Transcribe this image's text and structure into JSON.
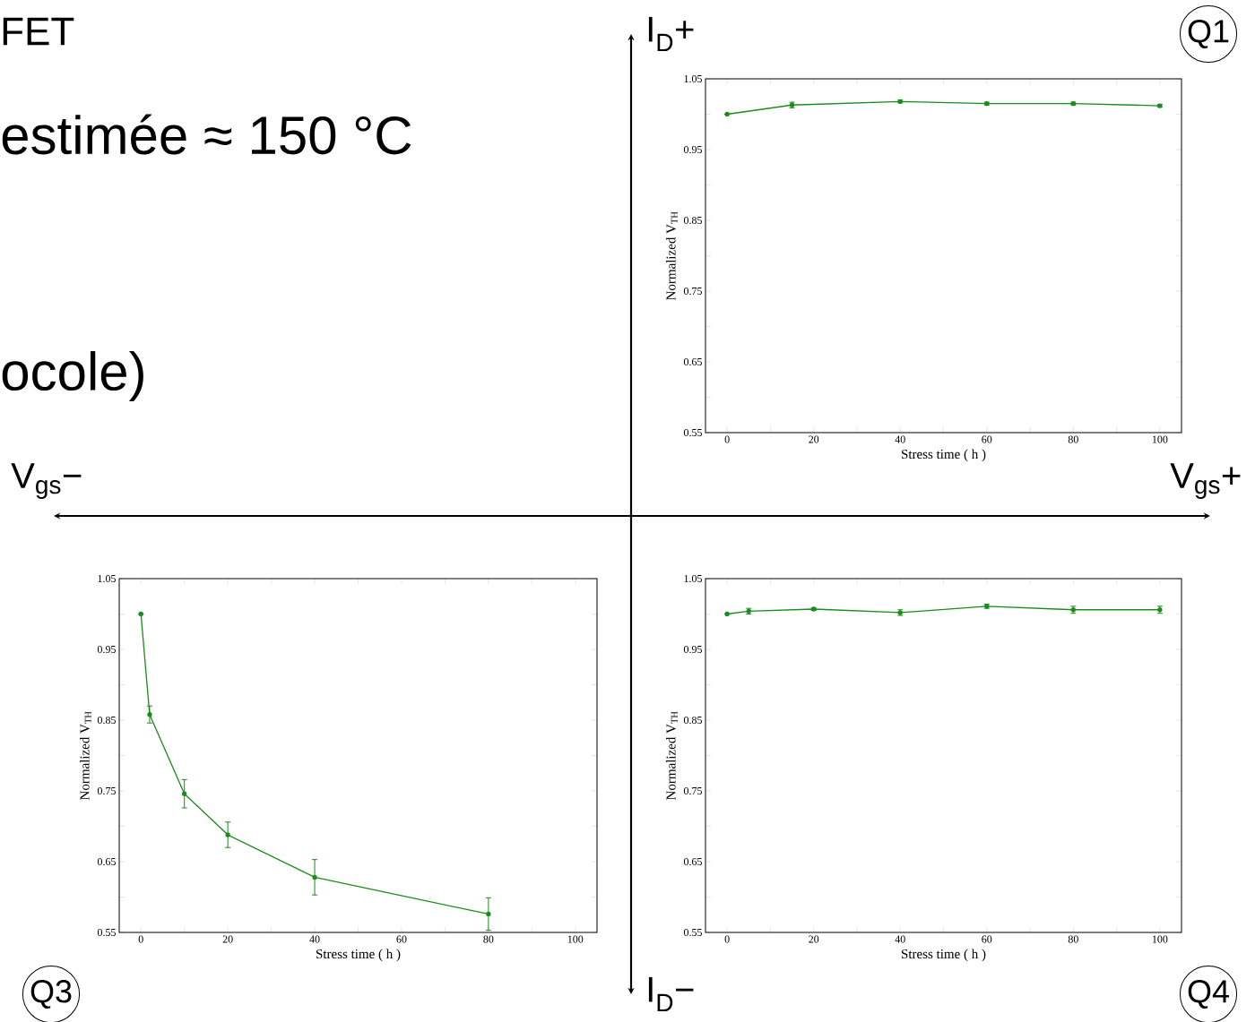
{
  "chart_data": [
    {
      "type": "line",
      "xlabel": "Stress time ( h )",
      "ylabel": "Normalized V$_{TH}$",
      "marker": "circle",
      "line_style": "solid",
      "x": [
        0,
        15,
        40,
        60,
        80,
        100
      ],
      "series": [
        {
          "color": "#1a8c1a",
          "values": [
            1.0,
            1.013,
            1.018,
            1.015,
            1.015,
            1.012
          ],
          "errors": [
            null,
            0.004,
            0.002,
            0.002,
            0.002,
            0.002
          ]
        }
      ],
      "xlim": [
        -5,
        105
      ],
      "ylim": [
        0.55,
        1.05
      ],
      "xticks": [
        0,
        {
          "value": 10,
          "label": null
        },
        20,
        {
          "value": 30,
          "label": null
        },
        40,
        {
          "value": 50,
          "label": null
        },
        60,
        {
          "value": 70,
          "label": null
        },
        80,
        {
          "value": 90,
          "label": null
        },
        100
      ],
      "yticks": [
        0.55,
        {
          "value": 0.6,
          "label": null
        },
        0.65,
        {
          "value": 0.7,
          "label": null
        },
        0.75,
        {
          "value": 0.8,
          "label": null
        },
        0.85,
        {
          "value": 0.9,
          "label": null
        },
        0.95,
        {
          "value": 1.0,
          "label": null
        },
        1.05
      ]
    },
    {
      "type": "line",
      "xlabel": "Stress time ( h )",
      "ylabel": "Normalized V$_{TH}$",
      "marker": "circle",
      "line_style": "solid",
      "x": [
        0,
        2,
        10,
        20,
        40,
        80
      ],
      "series": [
        {
          "color": "#1a8c1a",
          "values": [
            1.0,
            0.858,
            0.746,
            0.688,
            0.628,
            0.576
          ],
          "errors": [
            null,
            0.012,
            0.02,
            0.018,
            0.025,
            0.023
          ]
        }
      ],
      "xlim": [
        -5,
        105
      ],
      "ylim": [
        0.55,
        1.05
      ],
      "xticks": [
        0,
        {
          "value": 10,
          "label": null
        },
        20,
        {
          "value": 30,
          "label": null
        },
        40,
        {
          "value": 50,
          "label": null
        },
        60,
        {
          "value": 70,
          "label": null
        },
        80,
        {
          "value": 90,
          "label": null
        },
        100
      ],
      "yticks": [
        0.55,
        {
          "value": 0.6,
          "label": null
        },
        0.65,
        {
          "value": 0.7,
          "label": null
        },
        0.75,
        {
          "value": 0.8,
          "label": null
        },
        0.85,
        {
          "value": 0.9,
          "label": null
        },
        0.95,
        {
          "value": 1.0,
          "label": null
        },
        1.05
      ]
    },
    {
      "type": "line",
      "xlabel": "Stress time ( h )",
      "ylabel": "Normalized V$_{TH}$",
      "marker": "circle",
      "line_style": "solid",
      "x": [
        0,
        5,
        20,
        40,
        60,
        80,
        100
      ],
      "series": [
        {
          "color": "#1a8c1a",
          "values": [
            1.0,
            1.004,
            1.007,
            1.002,
            1.011,
            1.006,
            1.006
          ],
          "errors": [
            null,
            0.004,
            0.002,
            0.004,
            0.003,
            0.005,
            0.005
          ]
        }
      ],
      "xlim": [
        -5,
        105
      ],
      "ylim": [
        0.55,
        1.05
      ],
      "xticks": [
        0,
        {
          "value": 10,
          "label": null
        },
        20,
        {
          "value": 30,
          "label": null
        },
        40,
        {
          "value": 50,
          "label": null
        },
        60,
        {
          "value": 70,
          "label": null
        },
        80,
        {
          "value": 90,
          "label": null
        },
        100
      ],
      "yticks": [
        0.55,
        {
          "value": 0.6,
          "label": null
        },
        0.65,
        {
          "value": 0.7,
          "label": null
        },
        0.75,
        {
          "value": 0.8,
          "label": null
        },
        0.85,
        {
          "value": 0.9,
          "label": null
        },
        0.95,
        {
          "value": 1.0,
          "label": null
        },
        1.05
      ]
    },
    {
      "type": "other",
      "annotations": [
        "FET",
        "estimée ≈ 150 °C",
        "ocole)",
        "V$_{gs}$−",
        "V$_{gs}$+",
        "I$_{D}$+",
        "I$_{D}$−",
        "Q1",
        "Q3",
        "Q4"
      ]
    }
  ]
}
